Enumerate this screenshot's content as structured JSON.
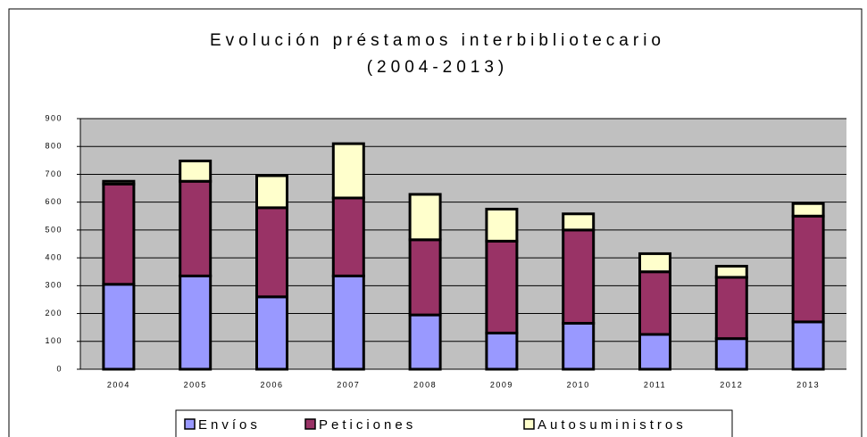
{
  "chart_data": {
    "type": "stacked_bar",
    "title": "Evolución préstamos interbibliotecario",
    "subtitle": "(2004-2013)",
    "categories": [
      "2004",
      "2005",
      "2006",
      "2007",
      "2008",
      "2009",
      "2010",
      "2011",
      "2012",
      "2013"
    ],
    "series": [
      {
        "name": "Envíos",
        "color": "#9999ff",
        "values": [
          305,
          335,
          260,
          335,
          195,
          130,
          165,
          125,
          110,
          170
        ]
      },
      {
        "name": "Peticiones",
        "color": "#993366",
        "values": [
          360,
          340,
          320,
          280,
          270,
          330,
          335,
          225,
          220,
          380
        ]
      },
      {
        "name": "Autosuministros",
        "color": "#ffffcc",
        "values": [
          10,
          73,
          115,
          195,
          163,
          115,
          58,
          65,
          40,
          45
        ]
      }
    ],
    "ylim": [
      0,
      900
    ],
    "yticks": [
      0,
      100,
      200,
      300,
      400,
      500,
      600,
      700,
      800,
      900
    ],
    "grid": true,
    "legend": "bottom"
  }
}
